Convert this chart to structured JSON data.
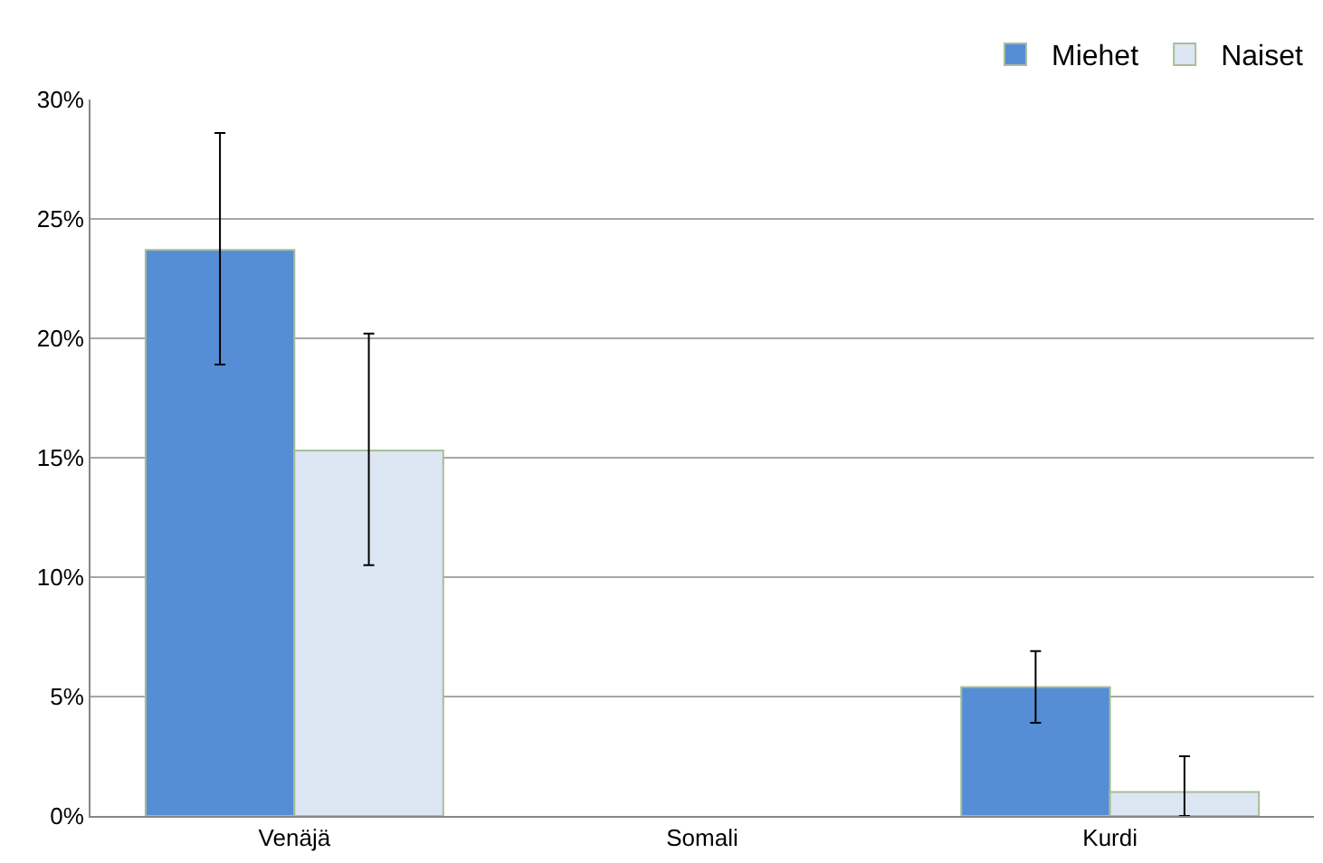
{
  "chart_data": {
    "type": "bar",
    "categories": [
      "Venäjä",
      "Somali",
      "Kurdi"
    ],
    "series": [
      {
        "name": "Miehet",
        "color": "#558ed5",
        "values": [
          23.7,
          null,
          5.4
        ],
        "errors": [
          [
            18.9,
            28.6
          ],
          null,
          [
            3.9,
            6.9
          ]
        ]
      },
      {
        "name": "Naiset",
        "color": "#dce6f2",
        "values": [
          15.3,
          null,
          1.0
        ],
        "errors": [
          [
            10.5,
            20.2
          ],
          null,
          [
            0,
            2.5
          ]
        ]
      }
    ],
    "ylim": [
      0,
      30
    ],
    "yticks": [
      {
        "value": 0,
        "label": "0%"
      },
      {
        "value": 5,
        "label": "5%"
      },
      {
        "value": 10,
        "label": "10%"
      },
      {
        "value": 15,
        "label": "15%"
      },
      {
        "value": 20,
        "label": "20%"
      },
      {
        "value": 25,
        "label": "25%"
      },
      {
        "value": 30,
        "label": "30%"
      }
    ],
    "grid": "y",
    "legend": "top right"
  }
}
